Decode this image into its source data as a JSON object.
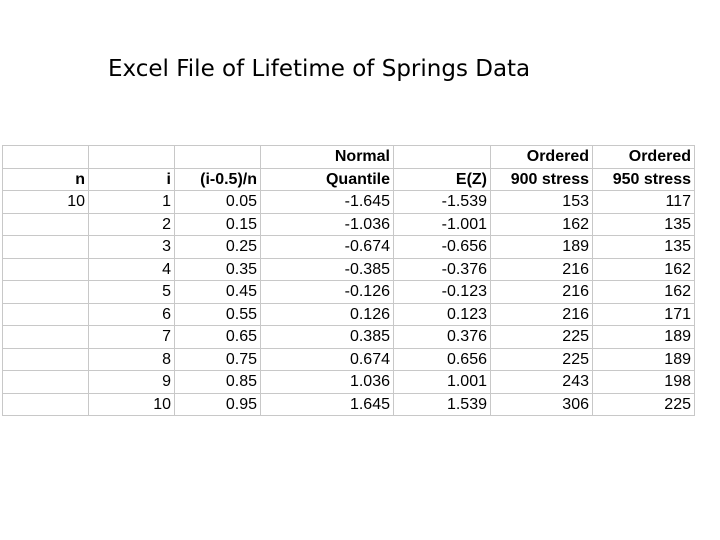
{
  "title": "Excel File of Lifetime of Springs Data",
  "header_row1": [
    "",
    "",
    "",
    "Normal",
    "",
    "Ordered",
    "Ordered"
  ],
  "header_row2": [
    "n",
    "i",
    "(i-0.5)/n",
    "Quantile",
    "E(Z)",
    "900 stress",
    "950 stress"
  ],
  "rows": [
    [
      "10",
      "1",
      "0.05",
      "-1.645",
      "-1.539",
      "153",
      "117"
    ],
    [
      "",
      "2",
      "0.15",
      "-1.036",
      "-1.001",
      "162",
      "135"
    ],
    [
      "",
      "3",
      "0.25",
      "-0.674",
      "-0.656",
      "189",
      "135"
    ],
    [
      "",
      "4",
      "0.35",
      "-0.385",
      "-0.376",
      "216",
      "162"
    ],
    [
      "",
      "5",
      "0.45",
      "-0.126",
      "-0.123",
      "216",
      "162"
    ],
    [
      "",
      "6",
      "0.55",
      "0.126",
      "0.123",
      "216",
      "171"
    ],
    [
      "",
      "7",
      "0.65",
      "0.385",
      "0.376",
      "225",
      "189"
    ],
    [
      "",
      "8",
      "0.75",
      "0.674",
      "0.656",
      "225",
      "189"
    ],
    [
      "",
      "9",
      "0.85",
      "1.036",
      "1.001",
      "243",
      "198"
    ],
    [
      "",
      "10",
      "0.95",
      "1.645",
      "1.539",
      "306",
      "225"
    ]
  ]
}
